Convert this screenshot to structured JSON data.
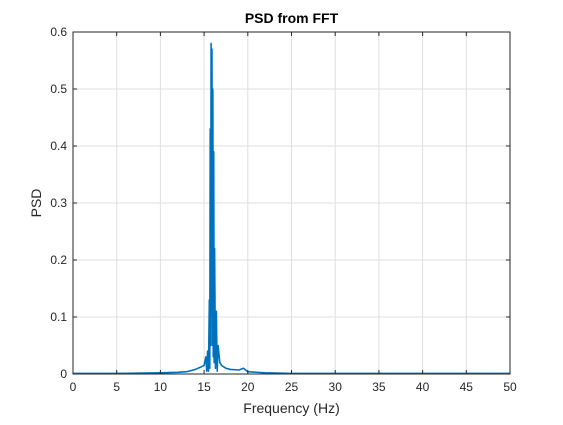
{
  "chart_data": {
    "type": "line",
    "title": "PSD from FFT",
    "xlabel": "Frequency (Hz)",
    "ylabel": "PSD",
    "xlim": [
      0,
      50
    ],
    "ylim": [
      0,
      0.6
    ],
    "grid": true,
    "x_ticks": [
      "0",
      "5",
      "10",
      "15",
      "20",
      "25",
      "30",
      "35",
      "40",
      "45",
      "50"
    ],
    "y_ticks": [
      "0",
      "0.1",
      "0.2",
      "0.3",
      "0.4",
      "0.5",
      "0.6"
    ],
    "series": [
      {
        "color": "#0072BD",
        "points": [
          [
            0,
            0.001
          ],
          [
            5,
            0.001
          ],
          [
            10,
            0.002
          ],
          [
            12,
            0.003
          ],
          [
            13,
            0.004
          ],
          [
            14,
            0.008
          ],
          [
            14.6,
            0.012
          ],
          [
            15.0,
            0.015
          ],
          [
            15.2,
            0.03
          ],
          [
            15.3,
            0.005
          ],
          [
            15.4,
            0.04
          ],
          [
            15.5,
            0.005
          ],
          [
            15.6,
            0.13
          ],
          [
            15.65,
            0.01
          ],
          [
            15.7,
            0.43
          ],
          [
            15.75,
            0.05
          ],
          [
            15.8,
            0.58
          ],
          [
            15.85,
            0.1
          ],
          [
            15.9,
            0.57
          ],
          [
            15.95,
            0.05
          ],
          [
            16.0,
            0.5
          ],
          [
            16.05,
            0.03
          ],
          [
            16.1,
            0.39
          ],
          [
            16.15,
            0.02
          ],
          [
            16.2,
            0.22
          ],
          [
            16.3,
            0.01
          ],
          [
            16.4,
            0.11
          ],
          [
            16.5,
            0.005
          ],
          [
            16.6,
            0.05
          ],
          [
            16.8,
            0.02
          ],
          [
            17.0,
            0.015
          ],
          [
            17.5,
            0.01
          ],
          [
            18,
            0.008
          ],
          [
            19,
            0.007
          ],
          [
            19.5,
            0.01
          ],
          [
            20,
            0.004
          ],
          [
            22,
            0.002
          ],
          [
            25,
            0.001
          ],
          [
            30,
            0.001
          ],
          [
            40,
            0.001
          ],
          [
            50,
            0.001
          ]
        ]
      }
    ]
  }
}
